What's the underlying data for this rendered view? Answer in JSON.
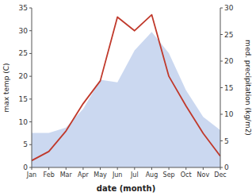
{
  "chart_data": {
    "type": "line",
    "xlabel": "date (month)",
    "ylabel": "max temp (C)",
    "y2label": "med. precipitation (kg/m2)",
    "categories": [
      "Jan",
      "Feb",
      "Mar",
      "Apr",
      "May",
      "Jun",
      "Jul",
      "Aug",
      "Sep",
      "Oct",
      "Nov",
      "Dec"
    ],
    "series": [
      {
        "type": "area",
        "axis": "y2",
        "color": "#c5d4ee",
        "values": [
          6.5,
          6.5,
          7.5,
          11.0,
          16.5,
          16.0,
          22.0,
          25.5,
          21.5,
          14.5,
          9.5,
          7.0
        ]
      },
      {
        "type": "line",
        "color": "#c0392b",
        "values": [
          1.5,
          3.5,
          8.0,
          14.0,
          19.0,
          33.0,
          30.0,
          33.5,
          20.0,
          13.5,
          7.5,
          2.5
        ]
      }
    ],
    "ylim": [
      0,
      35
    ],
    "yticks": [
      0,
      5,
      10,
      15,
      20,
      25,
      30,
      35
    ],
    "y2lim": [
      0,
      30
    ],
    "y2ticks": [
      0,
      5,
      10,
      15,
      20,
      25,
      30
    ]
  }
}
